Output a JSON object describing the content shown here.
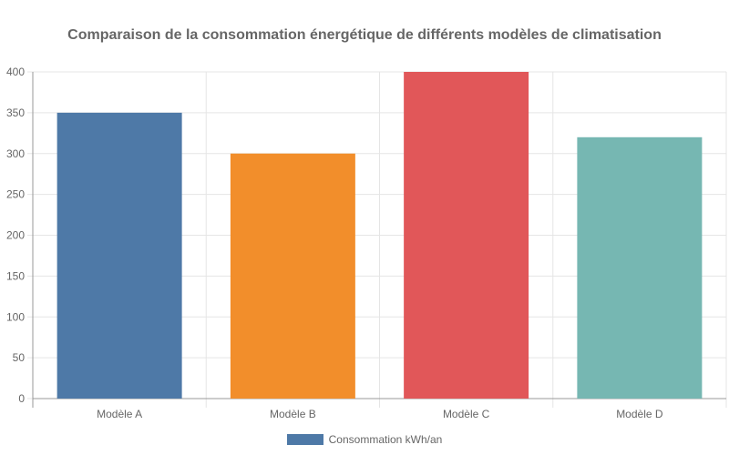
{
  "chart": {
    "title": "Comparaison de la consommation énergétique de différents modèles de climatisation"
  },
  "legend": {
    "label": "Consommation kWh/an",
    "color": "#4e79a7"
  },
  "colors": {
    "grid": "#e5e5e5",
    "axis": "#999999",
    "text": "#666666"
  },
  "chart_data": {
    "type": "bar",
    "title": "Comparaison de la consommation énergétique de différents modèles de climatisation",
    "categories": [
      "Modèle A",
      "Modèle B",
      "Modèle C",
      "Modèle D"
    ],
    "series": [
      {
        "name": "Consommation kWh/an",
        "values": [
          350,
          300,
          400,
          320
        ],
        "colors": [
          "#4e79a7",
          "#f28e2b",
          "#e15759",
          "#76b7b2"
        ]
      }
    ],
    "xlabel": "",
    "ylabel": "",
    "ylim": [
      0,
      400
    ],
    "yticks": [
      "0",
      "50",
      "100",
      "150",
      "200",
      "250",
      "300",
      "350",
      "400"
    ],
    "grid": true,
    "legend_position": "bottom"
  }
}
